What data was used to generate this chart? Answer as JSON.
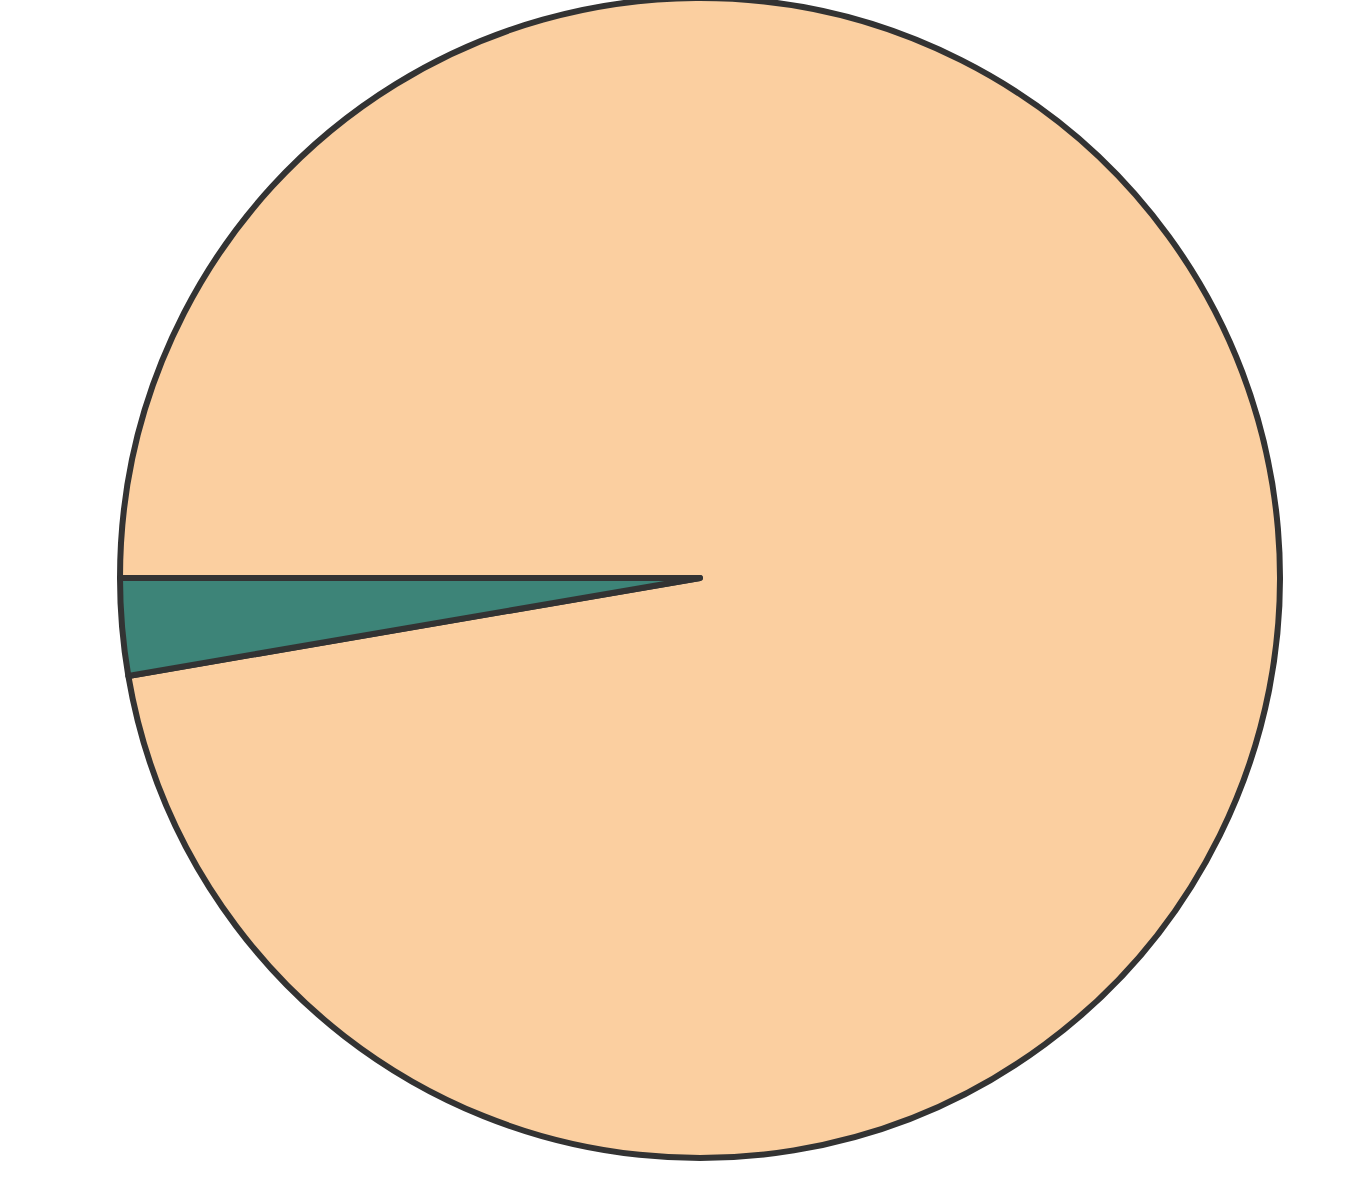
{
  "chart_data": {
    "type": "pie",
    "categories": [
      null,
      null
    ],
    "values": [
      97.3,
      2.7
    ],
    "colors": [
      "#fbcfa0",
      "#3d8478"
    ]
  }
}
